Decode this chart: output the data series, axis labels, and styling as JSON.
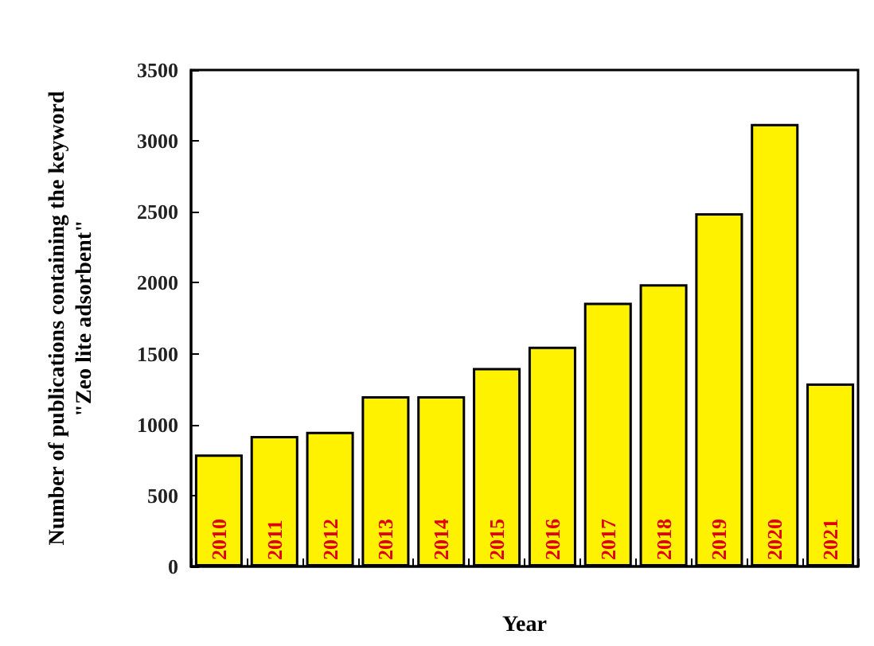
{
  "chart_data": {
    "type": "bar",
    "xlabel": "Year",
    "ylabel": "Number of publications containing the keyword\n\"Zeo lite adsorbent\"",
    "categories": [
      "2010",
      "2011",
      "2012",
      "2013",
      "2014",
      "2015",
      "2016",
      "2017",
      "2018",
      "2019",
      "2020",
      "2021"
    ],
    "values": [
      790,
      920,
      950,
      1200,
      1200,
      1400,
      1550,
      1860,
      1990,
      2490,
      3120,
      1290
    ],
    "color": "#fff200",
    "ylim": [
      0,
      3500
    ],
    "yticks": [
      0,
      500,
      1000,
      1500,
      2000,
      2500,
      3000,
      3500
    ],
    "grid": false
  }
}
